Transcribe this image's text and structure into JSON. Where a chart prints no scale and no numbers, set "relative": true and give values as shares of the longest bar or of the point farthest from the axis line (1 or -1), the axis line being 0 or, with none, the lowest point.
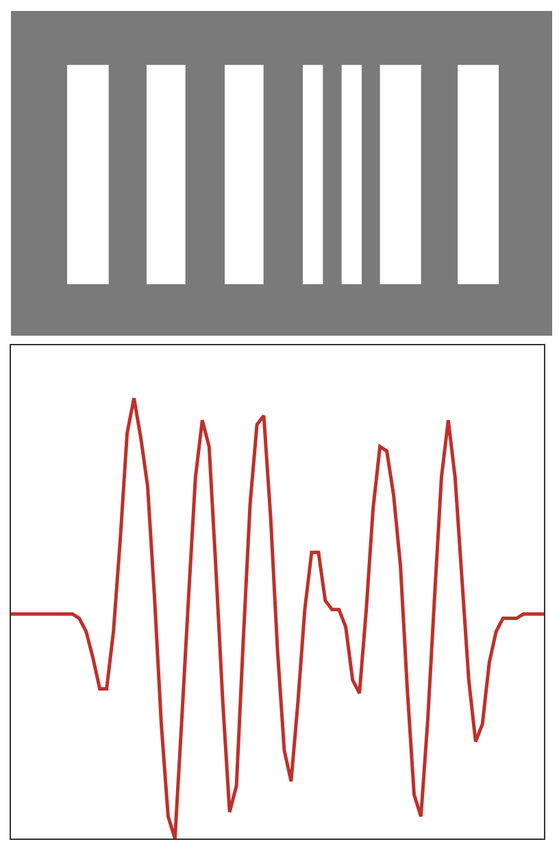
{
  "chart_data": {
    "type": "line",
    "relative": true,
    "marker": "none",
    "line_style": "solid",
    "categories": [
      null,
      null,
      null,
      null,
      null,
      null,
      null,
      null,
      null,
      null,
      null,
      null,
      null,
      null,
      null,
      null,
      null,
      null,
      null,
      null,
      null,
      null,
      null,
      null,
      null,
      null,
      null,
      null,
      null,
      null,
      null,
      null,
      null,
      null,
      null,
      null,
      null,
      null,
      null,
      null,
      null,
      null,
      null,
      null,
      null,
      null,
      null,
      null,
      null,
      null,
      null,
      null,
      null,
      null,
      null,
      null,
      null,
      null,
      null,
      null,
      null,
      null,
      null,
      null,
      null,
      null,
      null,
      null,
      null,
      null,
      null,
      null,
      null,
      null,
      null,
      null,
      null,
      null,
      null
    ],
    "series": [
      {
        "color": "#c0302a",
        "values": [
          0.51,
          0.51,
          0.51,
          0.51,
          0.51,
          0.51,
          0.51,
          0.51,
          0.51,
          0.51,
          0.5,
          0.47,
          0.41,
          0.34,
          0.34,
          0.47,
          0.68,
          0.92,
          1,
          0.91,
          0.8,
          0.55,
          0.26,
          0.05,
          0,
          0.27,
          0.55,
          0.82,
          0.95,
          0.89,
          0.61,
          0.31,
          0.06,
          0.12,
          0.45,
          0.76,
          0.94,
          0.96,
          0.73,
          0.43,
          0.2,
          0.13,
          0.31,
          0.52,
          0.65,
          0.65,
          0.54,
          0.52,
          0.52,
          0.48,
          0.36,
          0.33,
          0.52,
          0.75,
          0.89,
          0.88,
          0.78,
          0.62,
          0.34,
          0.1,
          0.05,
          0.27,
          0.55,
          0.82,
          0.95,
          0.82,
          0.59,
          0.36,
          0.22,
          0.26,
          0.4,
          0.47,
          0.5,
          0.5,
          0.5,
          0.51,
          0.51,
          0.51,
          0.51
        ]
      }
    ]
  }
}
